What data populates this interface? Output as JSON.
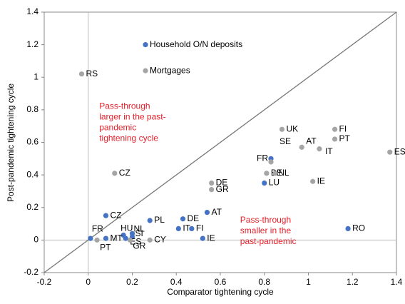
{
  "chart_data": {
    "type": "scatter",
    "xlabel": "Comparator tightening cycle",
    "ylabel": "Post-pandemic tightening cycle",
    "xlim": [
      -0.2,
      1.4
    ],
    "xticks": [
      -0.2,
      0,
      0.2,
      0.4,
      0.6,
      0.8,
      1,
      1.2,
      1.4
    ],
    "ylim": [
      -0.2,
      1.4
    ],
    "yticks": [
      -0.2,
      0,
      0.2,
      0.4,
      0.6,
      0.8,
      1,
      1.2,
      1.4
    ],
    "annotations": [
      {
        "color": "#e8202a",
        "x": 0.05,
        "y": 0.82,
        "lines": [
          "Pass-through",
          "larger in the past-",
          "pandemic",
          "tightening cycle"
        ]
      },
      {
        "color": "#e8202a",
        "x": 0.69,
        "y": 0.12,
        "lines": [
          "Pass-through",
          "smaller in the",
          "past-pandemic"
        ]
      }
    ],
    "series": [
      {
        "color": "#4472c4",
        "labels": [
          "Household O/N deposits",
          "LU",
          "FR",
          "CZ",
          "PL",
          "DE",
          "AT",
          "IT",
          "FI",
          "IE",
          "RO",
          "FR",
          "HU",
          "NL",
          "MT",
          "SI",
          "ES"
        ],
        "x": [
          0.26,
          0.8,
          0.83,
          0.08,
          0.28,
          0.43,
          0.54,
          0.41,
          0.47,
          0.52,
          1.18,
          0.01,
          0.16,
          0.2,
          0.08,
          0.2,
          0.17
        ],
        "values": [
          1.2,
          0.35,
          0.5,
          0.15,
          0.12,
          0.13,
          0.17,
          0.07,
          0.07,
          0.01,
          0.07,
          0.01,
          0.03,
          0.04,
          0.01,
          0.02,
          0.01
        ]
      },
      {
        "color": "#a5a5a5",
        "labels": [
          "Mortgages",
          "RS",
          "CZ",
          "DE",
          "GR",
          "UK",
          "SE",
          "AT",
          "IT",
          "FI",
          "PT",
          "ES",
          "BE",
          "NL",
          "IE",
          "PT",
          "GR",
          "CY"
        ],
        "x": [
          0.26,
          -0.03,
          0.12,
          0.56,
          0.56,
          0.88,
          0.83,
          0.97,
          1.05,
          1.12,
          1.12,
          1.37,
          0.81,
          0.85,
          1.02,
          0.04,
          0.19,
          0.28
        ],
        "values": [
          1.04,
          1.02,
          0.41,
          0.35,
          0.31,
          0.68,
          0.48,
          0.57,
          0.56,
          0.68,
          0.62,
          0.54,
          0.41,
          0.41,
          0.36,
          0.0,
          0.0,
          0.0
        ]
      }
    ]
  }
}
